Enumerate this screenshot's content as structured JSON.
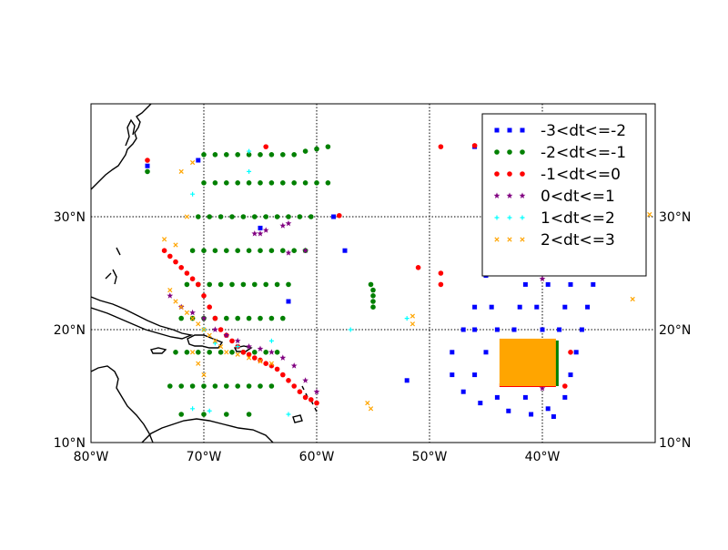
{
  "map": {
    "lon_range": [
      -80,
      -30
    ],
    "lat_range": [
      10,
      40
    ],
    "grid": "dotted",
    "lon_ticks": [
      {
        "value": -80,
        "label": "80°W"
      },
      {
        "value": -70,
        "label": "70°W"
      },
      {
        "value": -60,
        "label": "60°W"
      },
      {
        "value": -50,
        "label": "50°W"
      },
      {
        "value": -40,
        "label": "40°W"
      }
    ],
    "lat_ticks": [
      {
        "value": 10,
        "label": "10°N"
      },
      {
        "value": 20,
        "label": "20°N"
      },
      {
        "value": 30,
        "label": "30°N"
      }
    ],
    "legend": {
      "placement": "top-right",
      "entries": [
        {
          "label": "-3<dt<=-2",
          "color": "#0000ff",
          "marker": "square"
        },
        {
          "label": "-2<dt<=-1",
          "color": "#008000",
          "marker": "circle"
        },
        {
          "label": "-1<dt<=0",
          "color": "#ff0000",
          "marker": "circle"
        },
        {
          "label": "0<dt<=1",
          "color": "#800080",
          "marker": "star"
        },
        {
          "label": "1<dt<=2",
          "color": "#00ffff",
          "marker": "plus"
        },
        {
          "label": "2<dt<=3",
          "color": "#ffa500",
          "marker": "x"
        }
      ]
    }
  },
  "chart_data": {
    "type": "scatter",
    "xlabel": "",
    "ylabel": "",
    "xlim": [
      -80,
      -30
    ],
    "ylim": [
      10,
      40
    ],
    "series": [
      {
        "name": "-3<dt<=-2",
        "color": "#0000ff",
        "marker": "square",
        "points": [
          [
            -75,
            34.5
          ],
          [
            -70.5,
            35
          ],
          [
            -58.5,
            30
          ],
          [
            -46,
            36.2
          ],
          [
            -45,
            24.8
          ],
          [
            -44.5,
            22
          ],
          [
            -44,
            20
          ],
          [
            -45,
            18
          ],
          [
            -46,
            16
          ],
          [
            -47,
            14.5
          ],
          [
            -45.5,
            13.5
          ],
          [
            -43,
            12.8
          ],
          [
            -41,
            12.5
          ],
          [
            -39,
            12.3
          ],
          [
            -38,
            14
          ],
          [
            -37.5,
            16
          ],
          [
            -37,
            18
          ],
          [
            -36.5,
            20
          ],
          [
            -36,
            22
          ],
          [
            -35.5,
            24
          ],
          [
            -35,
            26
          ],
          [
            -34.5,
            28
          ],
          [
            -36,
            30
          ],
          [
            -38,
            32
          ],
          [
            -40,
            34
          ],
          [
            -42,
            36
          ],
          [
            -43,
            34
          ],
          [
            -41,
            30
          ],
          [
            -39,
            26
          ],
          [
            -38,
            22
          ],
          [
            -40,
            20
          ],
          [
            -42,
            22
          ],
          [
            -43,
            26
          ],
          [
            -44,
            30
          ],
          [
            -41.5,
            24
          ],
          [
            -39.5,
            24
          ],
          [
            -37.5,
            24
          ],
          [
            -42.5,
            20
          ],
          [
            -40.5,
            22
          ],
          [
            -38.5,
            20
          ],
          [
            -43.5,
            16
          ],
          [
            -41.5,
            14
          ],
          [
            -39.5,
            13
          ],
          [
            -45,
            26
          ],
          [
            -44,
            28
          ],
          [
            -42,
            28
          ],
          [
            -40,
            28
          ],
          [
            -38,
            28
          ],
          [
            -36,
            28
          ],
          [
            -43,
            32
          ],
          [
            -41,
            32
          ],
          [
            -39,
            32
          ],
          [
            -37,
            32
          ],
          [
            -44,
            34
          ],
          [
            -38,
            34
          ],
          [
            -36,
            34
          ],
          [
            -46,
            22
          ],
          [
            -47,
            20
          ],
          [
            -48,
            18
          ],
          [
            -48,
            16
          ],
          [
            -46,
            20
          ],
          [
            -44,
            14
          ],
          [
            -36.5,
            26
          ],
          [
            -65,
            29
          ],
          [
            -62.5,
            22.5
          ],
          [
            -57.5,
            27
          ],
          [
            -52,
            15.5
          ]
        ]
      },
      {
        "name": "-2<dt<=-1",
        "color": "#008000",
        "marker": "circle",
        "points": [
          [
            -75,
            34
          ],
          [
            -70,
            35.5
          ],
          [
            -69,
            35.5
          ],
          [
            -68,
            35.5
          ],
          [
            -67,
            35.5
          ],
          [
            -66,
            35.5
          ],
          [
            -65,
            35.5
          ],
          [
            -64,
            35.5
          ],
          [
            -63,
            35.5
          ],
          [
            -62,
            35.5
          ],
          [
            -61,
            35.8
          ],
          [
            -60,
            36
          ],
          [
            -59,
            36.2
          ],
          [
            -70,
            33
          ],
          [
            -69,
            33
          ],
          [
            -68,
            33
          ],
          [
            -67,
            33
          ],
          [
            -66,
            33
          ],
          [
            -65,
            33
          ],
          [
            -64,
            33
          ],
          [
            -63,
            33
          ],
          [
            -62,
            33
          ],
          [
            -61,
            33
          ],
          [
            -60,
            33
          ],
          [
            -59,
            33
          ],
          [
            -70.5,
            30
          ],
          [
            -69.5,
            30
          ],
          [
            -68.5,
            30
          ],
          [
            -67.5,
            30
          ],
          [
            -66.5,
            30
          ],
          [
            -65.5,
            30
          ],
          [
            -64.5,
            30
          ],
          [
            -63.5,
            30
          ],
          [
            -62.5,
            30
          ],
          [
            -61.5,
            30
          ],
          [
            -60.5,
            30
          ],
          [
            -71,
            27
          ],
          [
            -70,
            27
          ],
          [
            -69,
            27
          ],
          [
            -68,
            27
          ],
          [
            -67,
            27
          ],
          [
            -66,
            27
          ],
          [
            -65,
            27
          ],
          [
            -64,
            27
          ],
          [
            -63,
            27
          ],
          [
            -62,
            27
          ],
          [
            -61,
            27
          ],
          [
            -71.5,
            24
          ],
          [
            -70.5,
            24
          ],
          [
            -69.5,
            24
          ],
          [
            -68.5,
            24
          ],
          [
            -67.5,
            24
          ],
          [
            -66.5,
            24
          ],
          [
            -65.5,
            24
          ],
          [
            -64.5,
            24
          ],
          [
            -63.5,
            24
          ],
          [
            -62.5,
            24
          ],
          [
            -72,
            21
          ],
          [
            -71,
            21
          ],
          [
            -70,
            21
          ],
          [
            -69,
            21
          ],
          [
            -68,
            21
          ],
          [
            -67,
            21
          ],
          [
            -66,
            21
          ],
          [
            -65,
            21
          ],
          [
            -64,
            21
          ],
          [
            -63,
            21
          ],
          [
            -72.5,
            18
          ],
          [
            -71.5,
            18
          ],
          [
            -70.5,
            18
          ],
          [
            -69.5,
            18
          ],
          [
            -68.5,
            18
          ],
          [
            -67.5,
            18
          ],
          [
            -66.5,
            18
          ],
          [
            -65.5,
            18
          ],
          [
            -64.5,
            18
          ],
          [
            -63.5,
            18
          ],
          [
            -73,
            15
          ],
          [
            -72,
            15
          ],
          [
            -71,
            15
          ],
          [
            -70,
            15
          ],
          [
            -69,
            15
          ],
          [
            -68,
            15
          ],
          [
            -67,
            15
          ],
          [
            -66,
            15
          ],
          [
            -65,
            15
          ],
          [
            -64,
            15
          ],
          [
            -72,
            12.5
          ],
          [
            -70,
            12.5
          ],
          [
            -68,
            12.5
          ],
          [
            -66,
            12.5
          ],
          [
            -55,
            23.5
          ],
          [
            -55,
            23
          ],
          [
            -55,
            22.5
          ],
          [
            -55,
            22
          ],
          [
            -55.2,
            24
          ]
        ]
      },
      {
        "name": "-1<dt<=0",
        "color": "#ff0000",
        "marker": "circle",
        "points": [
          [
            -75,
            35
          ],
          [
            -64.5,
            36.2
          ],
          [
            -58,
            30.1
          ],
          [
            -49,
            36.2
          ],
          [
            -46,
            36.3
          ],
          [
            -51,
            25.5
          ],
          [
            -49,
            25
          ],
          [
            -49,
            24
          ],
          [
            -73.5,
            27
          ],
          [
            -73,
            26.5
          ],
          [
            -72.5,
            26
          ],
          [
            -72,
            25.5
          ],
          [
            -71.5,
            25
          ],
          [
            -71,
            24.5
          ],
          [
            -70.5,
            24
          ],
          [
            -70,
            23
          ],
          [
            -69.5,
            22
          ],
          [
            -69,
            21
          ],
          [
            -68.5,
            20
          ],
          [
            -68,
            19.5
          ],
          [
            -67.5,
            19
          ],
          [
            -67,
            18.5
          ],
          [
            -66.5,
            18
          ],
          [
            -66,
            17.8
          ],
          [
            -65.5,
            17.5
          ],
          [
            -65,
            17.3
          ],
          [
            -64.5,
            17
          ],
          [
            -64,
            16.8
          ],
          [
            -63.5,
            16.5
          ],
          [
            -63,
            16
          ],
          [
            -62.5,
            15.5
          ],
          [
            -62,
            15
          ],
          [
            -61.5,
            14.5
          ],
          [
            -61,
            14
          ],
          [
            -60.5,
            13.8
          ],
          [
            -60,
            13.5
          ],
          [
            -38,
            15
          ],
          [
            -37.5,
            18
          ],
          [
            -42,
            18
          ],
          [
            -40,
            17.5
          ]
        ]
      },
      {
        "name": "0<dt<=1",
        "color": "#800080",
        "marker": "star",
        "points": [
          [
            -65,
            28.5
          ],
          [
            -65.5,
            28.5
          ],
          [
            -64.5,
            28.8
          ],
          [
            -63,
            29.2
          ],
          [
            -62.5,
            29.4
          ],
          [
            -73,
            23
          ],
          [
            -72,
            22
          ],
          [
            -71,
            21.5
          ],
          [
            -70,
            21
          ],
          [
            -69,
            20
          ],
          [
            -68,
            19.5
          ],
          [
            -67,
            19
          ],
          [
            -66,
            18.5
          ],
          [
            -65,
            18.3
          ],
          [
            -64,
            18
          ],
          [
            -63,
            17.5
          ],
          [
            -62,
            16.8
          ],
          [
            -61,
            15.5
          ],
          [
            -60,
            14.5
          ],
          [
            -62.5,
            26.8
          ],
          [
            -61,
            27
          ],
          [
            -40,
            24.5
          ],
          [
            -40,
            14.8
          ]
        ]
      },
      {
        "name": "1<dt<=2",
        "color": "#00ffff",
        "marker": "plus",
        "points": [
          [
            -66,
            35.8
          ],
          [
            -71,
            32
          ],
          [
            -66,
            34
          ],
          [
            -70,
            20
          ],
          [
            -69,
            18.8
          ],
          [
            -67,
            18.5
          ],
          [
            -64,
            19
          ],
          [
            -71,
            13
          ],
          [
            -69.5,
            12.8
          ],
          [
            -62.5,
            12.5
          ],
          [
            -57,
            20
          ],
          [
            -52,
            21
          ]
        ]
      },
      {
        "name": "2<dt<=3",
        "color": "#ffa500",
        "marker": "x",
        "points": [
          [
            -71,
            34.8
          ],
          [
            -72,
            34
          ],
          [
            -73.5,
            28
          ],
          [
            -72.5,
            27.5
          ],
          [
            -71.5,
            30
          ],
          [
            -73,
            23.5
          ],
          [
            -72.5,
            22.5
          ],
          [
            -72,
            22
          ],
          [
            -71.5,
            21.5
          ],
          [
            -71,
            21
          ],
          [
            -70.5,
            20.5
          ],
          [
            -70,
            20
          ],
          [
            -69.5,
            19.5
          ],
          [
            -69,
            19
          ],
          [
            -68.5,
            18.5
          ],
          [
            -68,
            18
          ],
          [
            -67,
            17.8
          ],
          [
            -66,
            17.5
          ],
          [
            -65,
            17.2
          ],
          [
            -64,
            17
          ],
          [
            -71,
            18
          ],
          [
            -70.5,
            17
          ],
          [
            -70,
            16
          ],
          [
            -55.5,
            13.5
          ],
          [
            -55.2,
            13
          ],
          [
            -51.5,
            21.2
          ],
          [
            -51.5,
            20.5
          ],
          [
            -32,
            34
          ],
          [
            -30.5,
            30.2
          ],
          [
            -32,
            22.7
          ]
        ]
      },
      {
        "name": "2<dt<=3 block",
        "color": "#ffa500",
        "marker": "square",
        "fill_box": {
          "lon": [
            -43.8,
            -38.8
          ],
          "lat": [
            15,
            19.2
          ]
        }
      }
    ]
  }
}
